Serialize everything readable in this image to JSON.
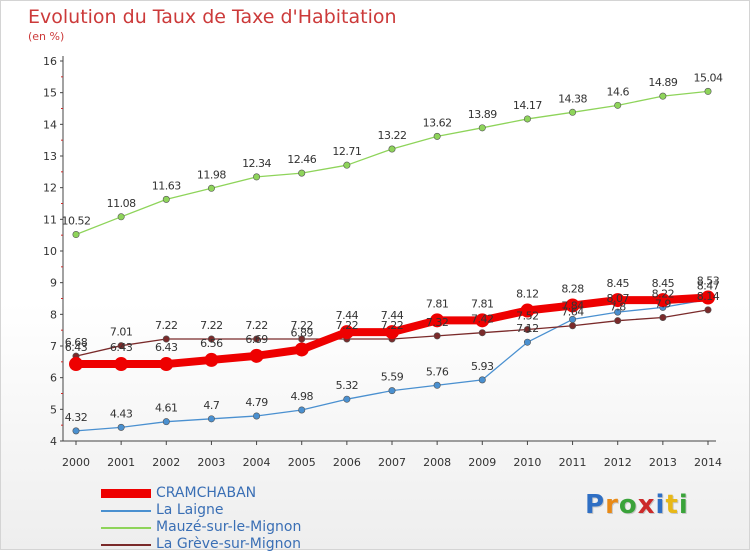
{
  "title": "Evolution du Taux de Taxe d'Habitation",
  "subtitle": "(en %)",
  "logo_text": "Proxiti",
  "logo_colors": [
    "#2f6fc4",
    "#e88a17",
    "#3aa33a",
    "#cc2a2a",
    "#2f6fc4",
    "#e8b817",
    "#3aa33a"
  ],
  "chart_data": {
    "type": "line",
    "x": [
      2000,
      2001,
      2002,
      2003,
      2004,
      2005,
      2006,
      2007,
      2008,
      2009,
      2010,
      2011,
      2012,
      2013,
      2014
    ],
    "ylim": [
      4,
      16
    ],
    "yticks": [
      4,
      5,
      6,
      7,
      8,
      9,
      10,
      11,
      12,
      13,
      14,
      15,
      16
    ],
    "grid": false,
    "legend_placement": "bottom-left",
    "series": [
      {
        "name": "CRAMCHABAN",
        "color": "#ee0000",
        "values": [
          6.43,
          6.43,
          6.43,
          6.56,
          6.69,
          6.89,
          7.44,
          7.44,
          7.81,
          7.81,
          8.12,
          8.28,
          8.45,
          8.45,
          8.53
        ],
        "labels": [
          "6.43",
          "6.43",
          "6.43",
          "6.56",
          "6.69",
          "6.89",
          "7.44",
          "7.44",
          "7.81",
          "7.81",
          "8.12",
          "8.28",
          "8.45",
          "8.45",
          "8.53"
        ]
      },
      {
        "name": "La Laigne",
        "color": "#4a90d0",
        "values": [
          4.32,
          4.43,
          4.61,
          4.7,
          4.79,
          4.98,
          5.32,
          5.59,
          5.76,
          5.93,
          7.12,
          7.84,
          8.07,
          8.22,
          8.47
        ],
        "labels": [
          "4.32",
          "4.43",
          "4.61",
          "4.7",
          "4.79",
          "4.98",
          "5.32",
          "5.59",
          "5.76",
          "5.93",
          "7.12",
          "7.84",
          "8.07",
          "8.22",
          "8.47"
        ]
      },
      {
        "name": "Mauzé-sur-le-Mignon",
        "color": "#8ed45a",
        "values": [
          10.52,
          11.08,
          11.63,
          11.98,
          12.34,
          12.46,
          12.71,
          13.22,
          13.62,
          13.89,
          14.17,
          14.38,
          14.6,
          14.89,
          15.04
        ],
        "labels": [
          "10.52",
          "11.08",
          "11.63",
          "11.98",
          "12.34",
          "12.46",
          "12.71",
          "13.22",
          "13.62",
          "13.89",
          "14.17",
          "14.38",
          "14.6",
          "14.89",
          "15.04"
        ]
      },
      {
        "name": "La Grève-sur-Mignon",
        "color": "#7a2a2a",
        "values": [
          6.68,
          7.01,
          7.22,
          7.22,
          7.22,
          7.22,
          7.22,
          7.22,
          7.32,
          7.42,
          7.52,
          7.64,
          7.8,
          7.9,
          8.14
        ],
        "labels": [
          "6.68",
          "7.01",
          "7.22",
          "7.22",
          "7.22",
          "7.22",
          "7.22",
          "7.22",
          "7.32",
          "7.42",
          "7.52",
          "7.64",
          "7.8",
          "7.9",
          "8.14"
        ]
      }
    ]
  }
}
